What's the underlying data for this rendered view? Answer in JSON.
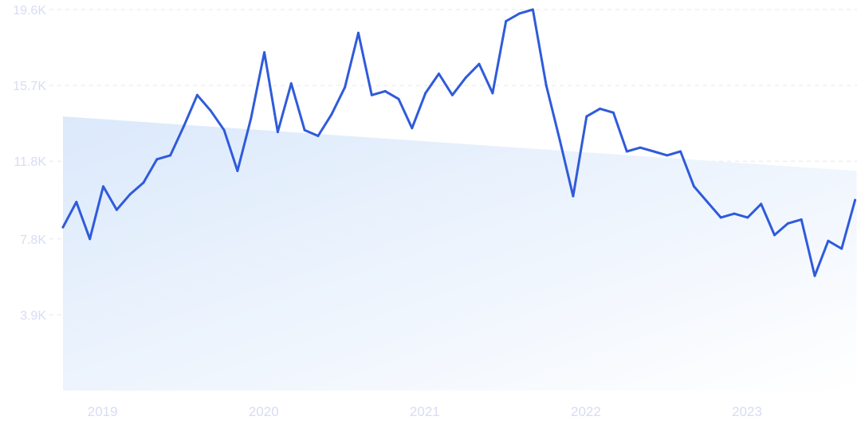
{
  "chart_data": {
    "type": "line",
    "title": "",
    "xlabel": "",
    "ylabel": "",
    "ylim": [
      0,
      19600
    ],
    "y_ticks": [
      {
        "value": 3900,
        "label": "3.9K"
      },
      {
        "value": 7800,
        "label": "7.8K"
      },
      {
        "value": 11800,
        "label": "11.8K"
      },
      {
        "value": 15700,
        "label": "15.7K"
      },
      {
        "value": 19600,
        "label": "19.6K"
      }
    ],
    "x_ticks": [
      {
        "value": "2019-01",
        "label": "2019"
      },
      {
        "value": "2020-01",
        "label": "2020"
      },
      {
        "value": "2021-01",
        "label": "2021"
      },
      {
        "value": "2022-01",
        "label": "2022"
      },
      {
        "value": "2023-01",
        "label": "2023"
      }
    ],
    "grid": "horizontal dashed",
    "colors": {
      "line": "#2f5bdb",
      "area_start": "#dbe9fb",
      "area_end": "#ffffff",
      "tick_text": "#d8dcf4",
      "grid": "#e6e8ee"
    },
    "trend": {
      "start": {
        "x": "2018-11",
        "y": 14100
      },
      "end": {
        "x": "2023-10",
        "y": 11300
      }
    },
    "series": [
      {
        "x": [
          "2018-11",
          "2018-12",
          "2019-01",
          "2019-02",
          "2019-03",
          "2019-04",
          "2019-05",
          "2019-06",
          "2019-07",
          "2019-08",
          "2019-09",
          "2019-10",
          "2019-11",
          "2019-12",
          "2020-01",
          "2020-02",
          "2020-03",
          "2020-04",
          "2020-05",
          "2020-06",
          "2020-07",
          "2020-08",
          "2020-09",
          "2020-10",
          "2020-11",
          "2020-12",
          "2021-01",
          "2021-02",
          "2021-03",
          "2021-04",
          "2021-05",
          "2021-06",
          "2021-07",
          "2021-08",
          "2021-09",
          "2021-10",
          "2021-11",
          "2021-12",
          "2022-01",
          "2022-02",
          "2022-03",
          "2022-04",
          "2022-05",
          "2022-06",
          "2022-07",
          "2022-08",
          "2022-09",
          "2022-10",
          "2022-11",
          "2022-12",
          "2023-01",
          "2023-02",
          "2023-03",
          "2023-04",
          "2023-05",
          "2023-06",
          "2023-07",
          "2023-08",
          "2023-09",
          "2023-10"
        ],
        "values": [
          8400,
          9700,
          7800,
          10500,
          9300,
          10100,
          10700,
          11900,
          12100,
          13600,
          15200,
          14400,
          13400,
          11300,
          14000,
          17400,
          13300,
          15800,
          13400,
          13100,
          14200,
          15600,
          18400,
          15200,
          15400,
          15000,
          13500,
          15300,
          16300,
          15200,
          16100,
          16800,
          15300,
          19000,
          19400,
          19600,
          15700,
          12900,
          10000,
          14100,
          14500,
          14300,
          12300,
          12500,
          12300,
          12100,
          12300,
          10500,
          9700,
          8900,
          9100,
          8900,
          9600,
          8000,
          8600,
          8800,
          5900,
          7700,
          7300,
          9800
        ]
      }
    ]
  }
}
